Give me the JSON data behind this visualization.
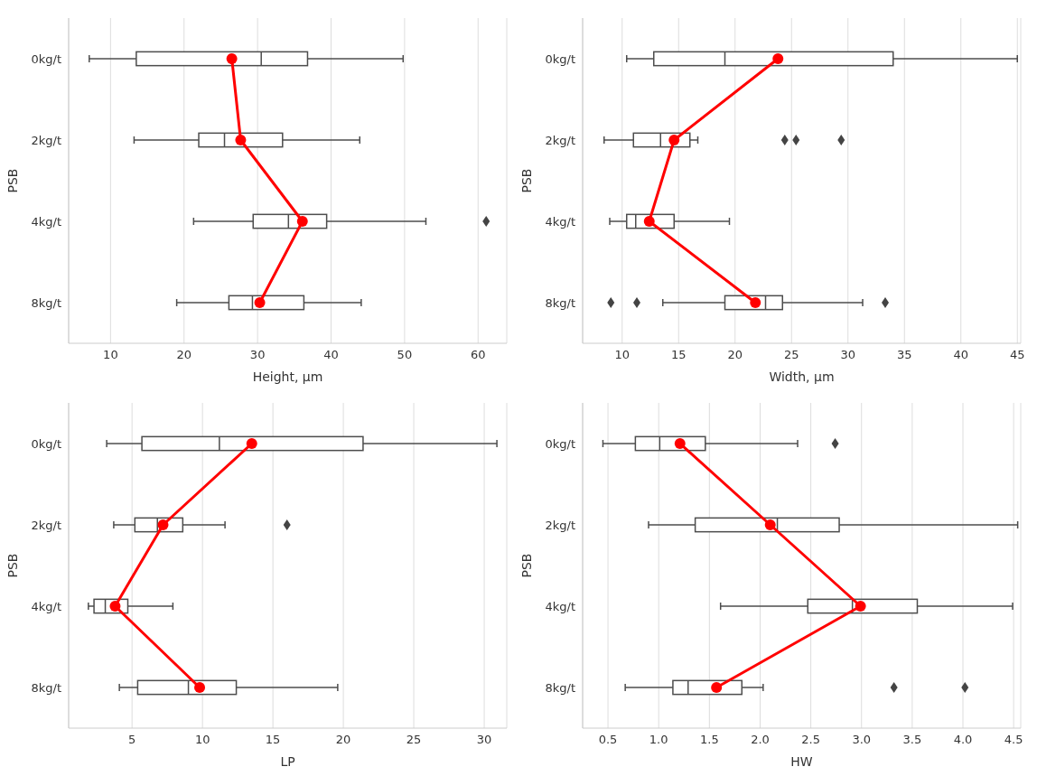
{
  "chart_data": [
    {
      "type": "box",
      "orientation": "horizontal",
      "categories": [
        "0kg/t",
        "2kg/t",
        "4kg/t",
        "8kg/t"
      ],
      "xlabel": "Height, µm",
      "ylabel": "PSB",
      "xlim": [
        4.3,
        63.9
      ],
      "xticks": [
        10,
        20,
        30,
        40,
        50,
        60
      ],
      "grid": "x",
      "boxes": [
        {
          "low": 7.1,
          "q1": 13.5,
          "median": 30.5,
          "q3": 36.8,
          "high": 49.8
        },
        {
          "low": 13.2,
          "q1": 22.0,
          "median": 25.5,
          "q3": 33.4,
          "high": 43.9
        },
        {
          "low": 21.3,
          "q1": 29.4,
          "median": 34.2,
          "q3": 39.4,
          "high": 52.9,
          "outliers": [
            61.1
          ]
        },
        {
          "low": 19.0,
          "q1": 26.1,
          "median": 29.3,
          "q3": 36.3,
          "high": 44.1
        }
      ],
      "series": [
        {
          "type": "line",
          "color": "#ff0000",
          "marker": "circle",
          "values": [
            26.5,
            27.7,
            36.1,
            30.3
          ]
        }
      ]
    },
    {
      "type": "box",
      "orientation": "horizontal",
      "categories": [
        "0kg/t",
        "2kg/t",
        "4kg/t",
        "8kg/t"
      ],
      "xlabel": "Width, µm",
      "ylabel": "PSB",
      "xlim": [
        6.5,
        45.3
      ],
      "xticks": [
        10,
        15,
        20,
        25,
        30,
        35,
        40,
        45
      ],
      "grid": "x",
      "boxes": [
        {
          "low": 10.4,
          "q1": 12.8,
          "median": 19.1,
          "q3": 34.0,
          "high": 45.0
        },
        {
          "low": 8.4,
          "q1": 11.0,
          "median": 13.4,
          "q3": 16.0,
          "high": 16.7,
          "outliers": [
            24.4,
            25.4,
            29.4
          ]
        },
        {
          "low": 8.9,
          "q1": 10.4,
          "median": 11.2,
          "q3": 14.6,
          "high": 19.5
        },
        {
          "low": 13.6,
          "q1": 19.1,
          "median": 22.7,
          "q3": 24.2,
          "high": 31.3,
          "outliers": [
            9.0,
            11.3,
            33.3
          ]
        }
      ],
      "series": [
        {
          "type": "line",
          "color": "#ff0000",
          "marker": "circle",
          "values": [
            23.8,
            14.6,
            12.4,
            21.8
          ]
        }
      ]
    },
    {
      "type": "box",
      "orientation": "horizontal",
      "categories": [
        "0kg/t",
        "2kg/t",
        "4kg/t",
        "8kg/t"
      ],
      "xlabel": "LP",
      "ylabel": "PSB",
      "xlim": [
        0.5,
        31.6
      ],
      "xticks": [
        5,
        10,
        15,
        20,
        25,
        30
      ],
      "grid": "x",
      "boxes": [
        {
          "low": 3.2,
          "q1": 5.7,
          "median": 11.2,
          "q3": 21.4,
          "high": 30.9
        },
        {
          "low": 3.7,
          "q1": 5.2,
          "median": 6.8,
          "q3": 8.6,
          "high": 11.6,
          "outliers": [
            16.0
          ]
        },
        {
          "low": 1.9,
          "q1": 2.3,
          "median": 3.1,
          "q3": 4.7,
          "high": 7.9
        },
        {
          "low": 4.1,
          "q1": 5.4,
          "median": 9.0,
          "q3": 12.4,
          "high": 19.6
        }
      ],
      "series": [
        {
          "type": "line",
          "color": "#ff0000",
          "marker": "circle",
          "values": [
            13.5,
            7.2,
            3.8,
            9.8
          ]
        }
      ]
    },
    {
      "type": "box",
      "orientation": "horizontal",
      "categories": [
        "0kg/t",
        "2kg/t",
        "4kg/t",
        "8kg/t"
      ],
      "xlabel": "HW",
      "ylabel": "PSB",
      "xlim": [
        0.25,
        4.57
      ],
      "xticks": [
        {
          "value": 0.5,
          "label": "0.5"
        },
        {
          "value": 1,
          "label": "1.0"
        },
        {
          "value": 1.5,
          "label": "1.5"
        },
        {
          "value": 2,
          "label": "2.0"
        },
        {
          "value": 2.5,
          "label": "2.5"
        },
        {
          "value": 3,
          "label": "3.0"
        },
        {
          "value": 3.5,
          "label": "3.5"
        },
        {
          "value": 4,
          "label": "4.0"
        },
        {
          "value": 4.5,
          "label": "4.5"
        }
      ],
      "grid": "x",
      "boxes": [
        {
          "low": 0.45,
          "q1": 0.77,
          "median": 1.01,
          "q3": 1.46,
          "high": 2.37,
          "outliers": [
            2.74
          ]
        },
        {
          "low": 0.9,
          "q1": 1.36,
          "median": 2.17,
          "q3": 2.78,
          "high": 4.54
        },
        {
          "low": 1.61,
          "q1": 2.47,
          "median": 2.91,
          "q3": 3.55,
          "high": 4.49
        },
        {
          "low": 0.67,
          "q1": 1.14,
          "median": 1.29,
          "q3": 1.82,
          "high": 2.03,
          "outliers": [
            3.32,
            4.02
          ]
        }
      ],
      "series": [
        {
          "type": "line",
          "color": "#ff0000",
          "marker": "circle",
          "values": [
            1.21,
            2.1,
            2.99,
            1.57
          ]
        }
      ]
    }
  ]
}
